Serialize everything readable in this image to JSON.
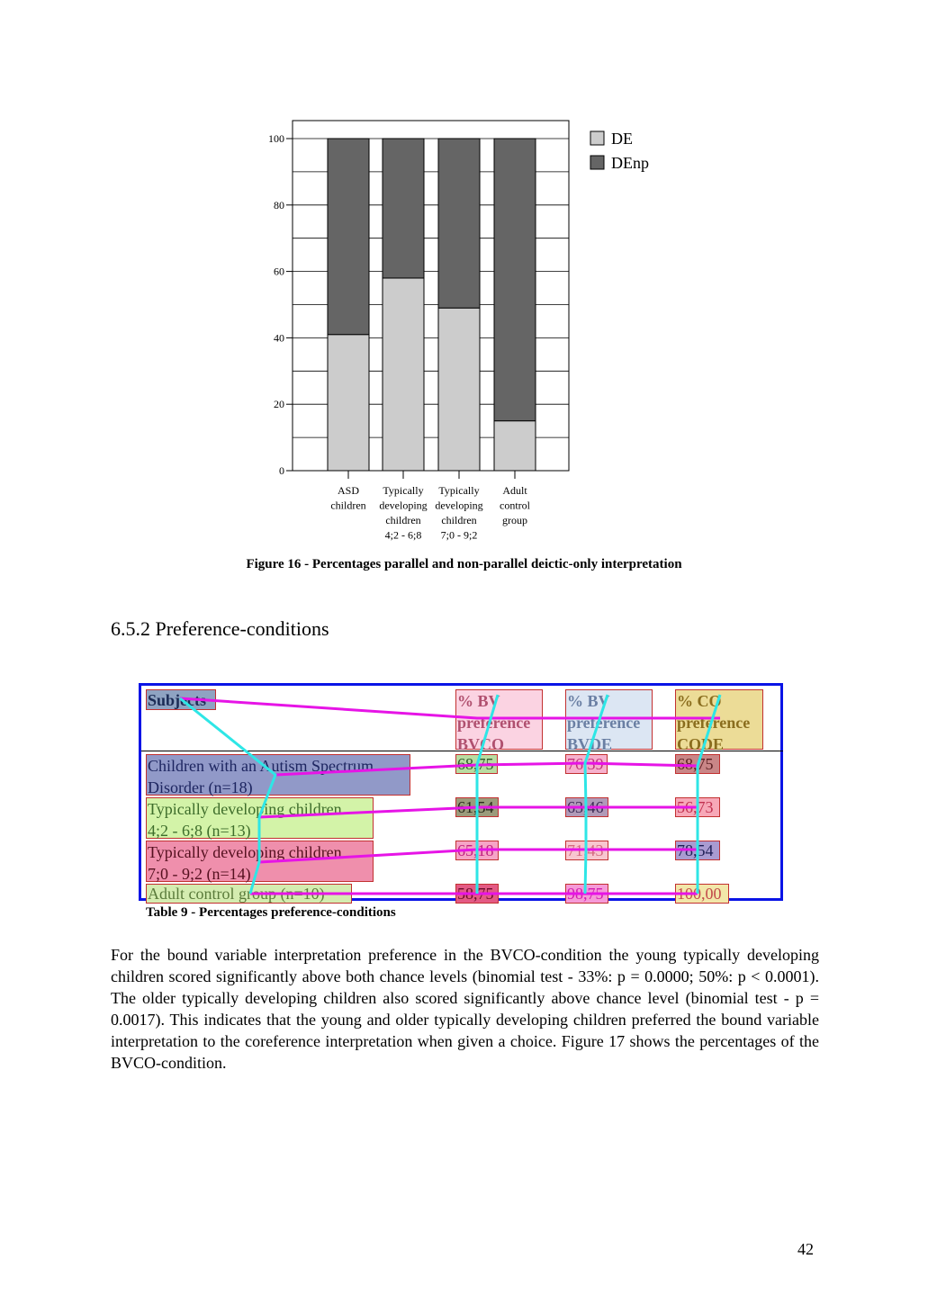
{
  "chart_data": {
    "type": "bar",
    "stacked": true,
    "title": "",
    "xlabel": "",
    "ylabel": "",
    "ylim": [
      0,
      100
    ],
    "yticks": [
      0,
      20,
      40,
      60,
      80,
      100
    ],
    "grid": true,
    "legend_position": "top-right",
    "categories": [
      [
        "ASD",
        "children"
      ],
      [
        "Typically",
        "developing",
        "children",
        "4;2 - 6;8"
      ],
      [
        "Typically",
        "developing",
        "children",
        "7;0 - 9;2"
      ],
      [
        "Adult",
        "control",
        "group"
      ]
    ],
    "series": [
      {
        "name": "DE",
        "color": "#cccccc",
        "values": [
          41,
          58,
          49,
          15
        ]
      },
      {
        "name": "DEnp",
        "color": "#656565",
        "values": [
          59,
          42,
          51,
          85
        ]
      }
    ]
  },
  "figure_caption": "Figure 16 - Percentages parallel and non-parallel deictic-only interpretation",
  "section_heading": "6.5.2 Preference-conditions",
  "table": {
    "headers": [
      {
        "text": "Subjects",
        "color": "#8fa3c2",
        "text_color": "#1b2b55"
      },
      {
        "text": "% BV\npreference\nBVCO",
        "color": "#fbd3e2",
        "text_color": "#b0506f"
      },
      {
        "text": "% BV\npreference\nBVDE",
        "color": "#dce6f3",
        "text_color": "#6a7fa3"
      },
      {
        "text": "% CO\npreference\nCODE",
        "color": "#ecdc97",
        "text_color": "#8a6d1e"
      }
    ],
    "rows": [
      {
        "subject": "Children with an Autism Spectrum\nDisorder (n=18)",
        "subject_color": "#9199c8",
        "subject_text": "#1d2560",
        "values": [
          "68,75",
          "76,39",
          "68,75"
        ],
        "value_colors": [
          "#b9dca1",
          "#f6b1cd",
          "#c98687"
        ],
        "value_text": [
          "#2f5a2a",
          "#c0327a",
          "#5a1f22"
        ]
      },
      {
        "subject": "Typically developing children\n4;2 - 6;8 (n=13)",
        "subject_color": "#d3f3a8",
        "subject_text": "#3e6d2b",
        "values": [
          "61,54",
          "63,46",
          "56,73"
        ],
        "value_colors": [
          "#9b9b7b",
          "#b09ab8",
          "#f7a8b8"
        ],
        "value_text": [
          "#2b2b1c",
          "#3b2a55",
          "#c0304f"
        ]
      },
      {
        "subject": "Typically developing children\n7;0 - 9;2 (n=14)",
        "subject_color": "#ef8fac",
        "subject_text": "#55101f",
        "values": [
          "65,18",
          "71,43",
          "78,54"
        ],
        "value_colors": [
          "#f6a4c6",
          "#f8c6cf",
          "#a99bd1"
        ],
        "value_text": [
          "#c02080",
          "#d46a80",
          "#1e1e55"
        ]
      },
      {
        "subject": "Adult control group (n=10)",
        "subject_color": "#d4ecb0",
        "subject_text": "#5a7a3a",
        "values": [
          "58,75",
          "98,75",
          "100,00"
        ],
        "value_colors": [
          "#e35a84",
          "#f59ad8",
          "#f2e7a9"
        ],
        "value_text": [
          "#6a0b2a",
          "#d21bb0",
          "#c24a4a"
        ]
      }
    ]
  },
  "table_caption": "Table 9 - Percentages preference-conditions",
  "body_text": "For the bound variable interpretation preference in the BVCO-condition the young typically developing children scored significantly above both chance levels (binomial test - 33%: p = 0.0000; 50%: p < 0.0001). The older typically developing children also scored significantly above chance level (binomial test - p = 0.0017). This indicates that the young and older typically developing children preferred the bound variable interpretation to the coreference interpretation when given a choice. Figure 17 shows the percentages of the BVCO-condition.",
  "page_number": "42",
  "colors": {
    "table_frame": "#0a14e6",
    "row_links": "#e614e6",
    "column_links": "#2ee6e6"
  }
}
